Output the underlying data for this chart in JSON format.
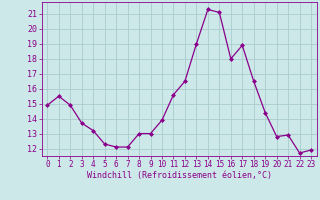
{
  "x": [
    0,
    1,
    2,
    3,
    4,
    5,
    6,
    7,
    8,
    9,
    10,
    11,
    12,
    13,
    14,
    15,
    16,
    17,
    18,
    19,
    20,
    21,
    22,
    23
  ],
  "y": [
    14.9,
    15.5,
    14.9,
    13.7,
    13.2,
    12.3,
    12.1,
    12.1,
    13.0,
    13.0,
    13.9,
    15.6,
    16.5,
    19.0,
    21.3,
    21.1,
    18.0,
    18.9,
    16.5,
    14.4,
    12.8,
    12.9,
    11.7,
    11.9
  ],
  "line_color": "#8b008b",
  "marker": "D",
  "marker_size": 2.0,
  "line_width": 0.9,
  "bg_color": "#cce8e8",
  "grid_color": "#aacccc",
  "xlabel": "Windchill (Refroidissement éolien,°C)",
  "xlabel_color": "#8b008b",
  "tick_color": "#8b008b",
  "ylim": [
    11.5,
    21.8
  ],
  "yticks": [
    12,
    13,
    14,
    15,
    16,
    17,
    18,
    19,
    20,
    21
  ],
  "xlim": [
    -0.5,
    23.5
  ],
  "xticks": [
    0,
    1,
    2,
    3,
    4,
    5,
    6,
    7,
    8,
    9,
    10,
    11,
    12,
    13,
    14,
    15,
    16,
    17,
    18,
    19,
    20,
    21,
    22,
    23
  ],
  "tick_fontsize": 5.5,
  "xlabel_fontsize": 6.0,
  "ytick_fontsize": 6.0
}
